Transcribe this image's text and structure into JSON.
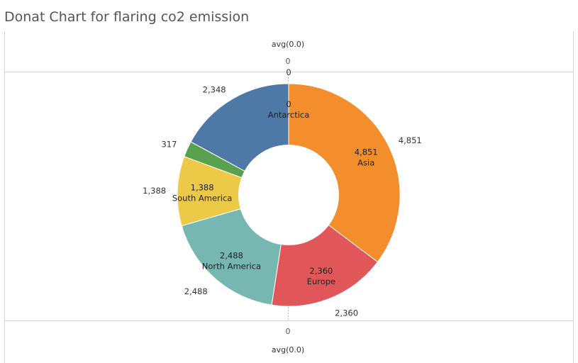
{
  "chart_data": {
    "type": "pie",
    "title": "Donat Chart for flaring co2 emission",
    "categories": [
      "Antarctica",
      "Asia",
      "Europe",
      "North America",
      "South America",
      "",
      ""
    ],
    "values": [
      0,
      4851,
      2360,
      2488,
      1388,
      317,
      2348
    ],
    "labels": [
      "0",
      "4,851",
      "2,360",
      "2,488",
      "1,388",
      "317",
      "2,348"
    ],
    "colors": [
      "#4e79a7",
      "#f28e2b",
      "#e15759",
      "#76b7b2",
      "#edc948",
      "#59a14f",
      "#4e79a7"
    ],
    "top_axis": {
      "label": "avg(0.0)",
      "tick": "0"
    },
    "bottom_axis": {
      "label": "avg(0.0)",
      "tick": "0"
    },
    "hole": true
  }
}
